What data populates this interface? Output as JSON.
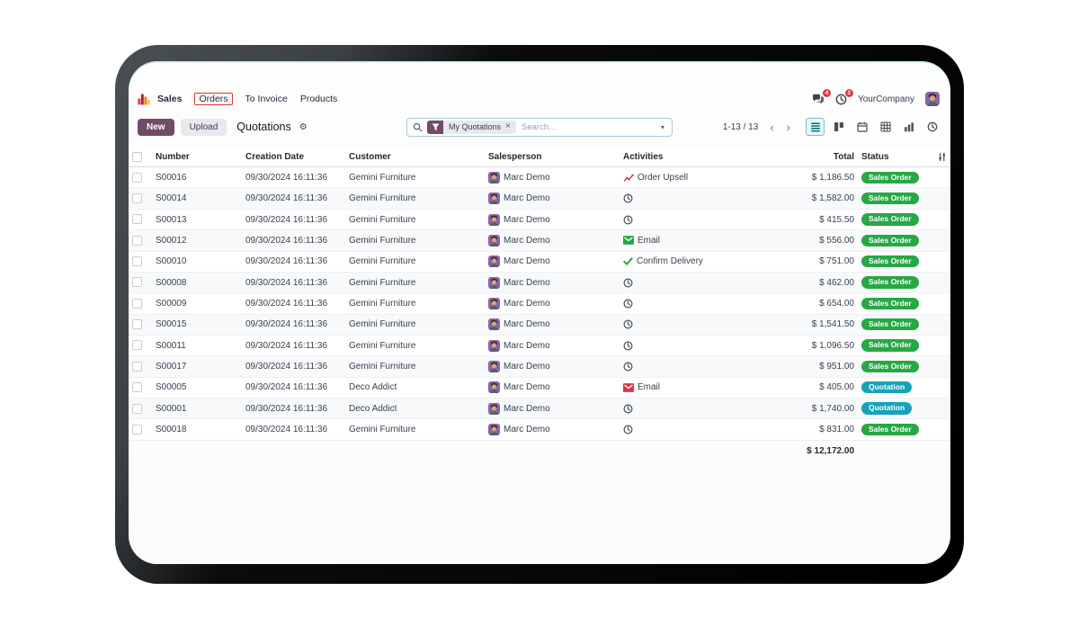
{
  "icons": {
    "gear": "⚙",
    "close": "×",
    "caret_down": "▾",
    "chevron_left": "‹",
    "chevron_right": "›"
  },
  "navbar": {
    "menus": [
      {
        "label": "Sales"
      },
      {
        "label": "Orders",
        "annotated": true
      },
      {
        "label": "To Invoice"
      },
      {
        "label": "Products"
      }
    ],
    "annotation_color": "#e5332a",
    "messages_badge": "4",
    "activities_badge": "2",
    "company_name": "YourCompany"
  },
  "control_panel": {
    "new_button": "New",
    "upload_button": "Upload",
    "title": "Quotations",
    "search": {
      "facet": "My Quotations",
      "placeholder": "Search..."
    },
    "pager": {
      "text": "1-13 / 13"
    },
    "views": [
      "list",
      "kanban",
      "calendar",
      "pivot",
      "graph",
      "activity"
    ],
    "active_view": "list"
  },
  "table": {
    "columns": [
      "Number",
      "Creation Date",
      "Customer",
      "Salesperson",
      "Activities",
      "Total",
      "Status"
    ],
    "footer_total": "$ 12,172.00",
    "rows": [
      {
        "number": "S00016",
        "creation_date": "09/30/2024 16:11:36",
        "customer": "Gemini Furniture",
        "salesperson": "Marc Demo",
        "activity": {
          "type": "upsell",
          "label": "Order Upsell"
        },
        "total": "$ 1,186.50",
        "status": "Sales Order"
      },
      {
        "number": "S00014",
        "creation_date": "09/30/2024 16:11:36",
        "customer": "Gemini Furniture",
        "salesperson": "Marc Demo",
        "activity": {
          "type": "clock",
          "label": ""
        },
        "total": "$ 1,582.00",
        "status": "Sales Order"
      },
      {
        "number": "S00013",
        "creation_date": "09/30/2024 16:11:36",
        "customer": "Gemini Furniture",
        "salesperson": "Marc Demo",
        "activity": {
          "type": "clock",
          "label": ""
        },
        "total": "$ 415.50",
        "status": "Sales Order"
      },
      {
        "number": "S00012",
        "creation_date": "09/30/2024 16:11:36",
        "customer": "Gemini Furniture",
        "salesperson": "Marc Demo",
        "activity": {
          "type": "email-planned",
          "label": "Email"
        },
        "total": "$ 556.00",
        "status": "Sales Order"
      },
      {
        "number": "S00010",
        "creation_date": "09/30/2024 16:11:36",
        "customer": "Gemini Furniture",
        "salesperson": "Marc Demo",
        "activity": {
          "type": "check",
          "label": "Confirm Delivery"
        },
        "total": "$ 751.00",
        "status": "Sales Order"
      },
      {
        "number": "S00008",
        "creation_date": "09/30/2024 16:11:36",
        "customer": "Gemini Furniture",
        "salesperson": "Marc Demo",
        "activity": {
          "type": "clock",
          "label": ""
        },
        "total": "$ 462.00",
        "status": "Sales Order"
      },
      {
        "number": "S00009",
        "creation_date": "09/30/2024 16:11:36",
        "customer": "Gemini Furniture",
        "salesperson": "Marc Demo",
        "activity": {
          "type": "clock",
          "label": ""
        },
        "total": "$ 654.00",
        "status": "Sales Order"
      },
      {
        "number": "S00015",
        "creation_date": "09/30/2024 16:11:36",
        "customer": "Gemini Furniture",
        "salesperson": "Marc Demo",
        "activity": {
          "type": "clock",
          "label": ""
        },
        "total": "$ 1,541.50",
        "status": "Sales Order"
      },
      {
        "number": "S00011",
        "creation_date": "09/30/2024 16:11:36",
        "customer": "Gemini Furniture",
        "salesperson": "Marc Demo",
        "activity": {
          "type": "clock",
          "label": ""
        },
        "total": "$ 1,096.50",
        "status": "Sales Order"
      },
      {
        "number": "S00017",
        "creation_date": "09/30/2024 16:11:36",
        "customer": "Gemini Furniture",
        "salesperson": "Marc Demo",
        "activity": {
          "type": "clock",
          "label": ""
        },
        "total": "$ 951.00",
        "status": "Sales Order"
      },
      {
        "number": "S00005",
        "creation_date": "09/30/2024 16:11:36",
        "customer": "Deco Addict",
        "salesperson": "Marc Demo",
        "activity": {
          "type": "email-overdue",
          "label": "Email"
        },
        "total": "$ 405.00",
        "status": "Quotation"
      },
      {
        "number": "S00001",
        "creation_date": "09/30/2024 16:11:36",
        "customer": "Deco Addict",
        "salesperson": "Marc Demo",
        "activity": {
          "type": "clock",
          "label": ""
        },
        "total": "$ 1,740.00",
        "status": "Quotation"
      },
      {
        "number": "S00018",
        "creation_date": "09/30/2024 16:11:36",
        "customer": "Gemini Furniture",
        "salesperson": "Marc Demo",
        "activity": {
          "type": "clock",
          "label": ""
        },
        "total": "$ 831.00",
        "status": "Sales Order"
      }
    ]
  },
  "colors": {
    "brand": "#714B67",
    "status": {
      "Sales Order": "#28a745",
      "Quotation": "#17a2b8"
    },
    "activity": {
      "clock": "#495057",
      "upsell": "#dc3545",
      "email-planned": "#28a745",
      "email-overdue": "#dc3545",
      "check": "#28a745"
    },
    "badge_red": "#e1393f",
    "view_active": "#00717a"
  }
}
